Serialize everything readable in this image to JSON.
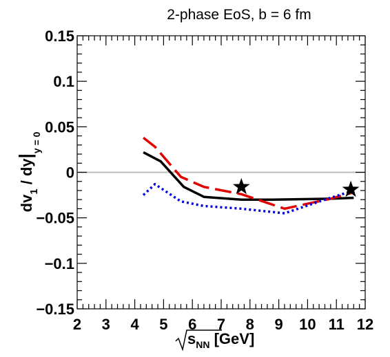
{
  "chart_data": {
    "type": "line",
    "title": "2-phase EoS, b = 6 fm",
    "xlabel": {
      "sqrt": "s",
      "sub": "NN",
      "unit": "[GeV]"
    },
    "ylabel": {
      "main": "dv",
      "sub": "1",
      "rest": " / dy",
      "bar": "|",
      "cond": "y = 0"
    },
    "xlim": [
      2,
      12
    ],
    "ylim": [
      -0.15,
      0.15
    ],
    "xticks": [
      "2",
      "3",
      "4",
      "5",
      "6",
      "7",
      "8",
      "9",
      "10",
      "11",
      "12"
    ],
    "yticks": [
      "0.15",
      "0.1",
      "0.05",
      "0",
      "−0.05",
      "−0.1",
      "−0.15"
    ],
    "ytick_values": [
      0.15,
      0.1,
      0.05,
      0,
      -0.05,
      -0.1,
      -0.15
    ],
    "xtick_values": [
      2,
      3,
      4,
      5,
      6,
      7,
      8,
      9,
      10,
      11,
      12
    ],
    "zero_line": {
      "y": 0,
      "color": "#bbbbbb"
    },
    "series": [
      {
        "style": "solid",
        "color": "#000000",
        "x": [
          4.3,
          4.9,
          5.7,
          6.4,
          7.7,
          8.8,
          10.8,
          11.6
        ],
        "y": [
          0.022,
          0.012,
          -0.016,
          -0.027,
          -0.03,
          -0.03,
          -0.029,
          -0.028
        ]
      },
      {
        "style": "dashed",
        "color": "#e00000",
        "x": [
          4.3,
          4.7,
          5.6,
          6.4,
          7.7,
          9.2,
          10.8,
          11.6
        ],
        "y": [
          0.038,
          0.028,
          -0.005,
          -0.016,
          -0.024,
          -0.04,
          -0.029,
          -0.022
        ]
      },
      {
        "style": "dotted",
        "color": "#0000e0",
        "x": [
          4.3,
          4.7,
          5.6,
          6.4,
          7.7,
          9.2,
          10.6,
          11.6
        ],
        "y": [
          -0.025,
          -0.013,
          -0.032,
          -0.037,
          -0.04,
          -0.045,
          -0.03,
          -0.02
        ]
      }
    ],
    "markers": {
      "symbol": "star",
      "color": "#000000",
      "points": [
        {
          "x": 7.7,
          "y": -0.016
        },
        {
          "x": 11.5,
          "y": -0.019
        }
      ]
    }
  }
}
